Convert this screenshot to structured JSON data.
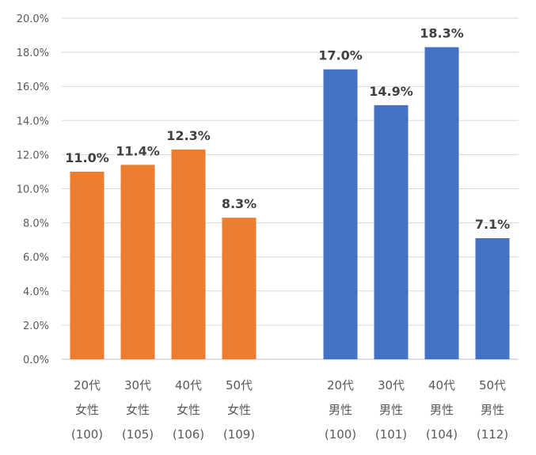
{
  "chart_data": {
    "type": "bar",
    "title": "",
    "xlabel": "",
    "ylabel": "",
    "ylim": [
      0,
      20
    ],
    "y_ticks": [
      "0.0%",
      "2.0%",
      "4.0%",
      "6.0%",
      "8.0%",
      "10.0%",
      "12.0%",
      "14.0%",
      "16.0%",
      "18.0%",
      "20.0%"
    ],
    "grid": "horizontal",
    "legend": "none",
    "groups": [
      {
        "color": "#ed7d31",
        "bars": [
          {
            "label": [
              "20代",
              "女性",
              "(100)"
            ],
            "value": 11.0,
            "data_label": "11.0%"
          },
          {
            "label": [
              "30代",
              "女性",
              "(105)"
            ],
            "value": 11.4,
            "data_label": "11.4%"
          },
          {
            "label": [
              "40代",
              "女性",
              "(106)"
            ],
            "value": 12.3,
            "data_label": "12.3%"
          },
          {
            "label": [
              "50代",
              "女性",
              "(109)"
            ],
            "value": 8.3,
            "data_label": "8.3%"
          }
        ]
      },
      {
        "color": "#4472c4",
        "bars": [
          {
            "label": [
              "20代",
              "男性",
              "(100)"
            ],
            "value": 17.0,
            "data_label": "17.0%"
          },
          {
            "label": [
              "30代",
              "男性",
              "(101)"
            ],
            "value": 14.9,
            "data_label": "14.9%"
          },
          {
            "label": [
              "40代",
              "男性",
              "(104)"
            ],
            "value": 18.3,
            "data_label": "18.3%"
          },
          {
            "label": [
              "50代",
              "男性",
              "(112)"
            ],
            "value": 7.1,
            "data_label": "7.1%"
          }
        ]
      }
    ]
  }
}
